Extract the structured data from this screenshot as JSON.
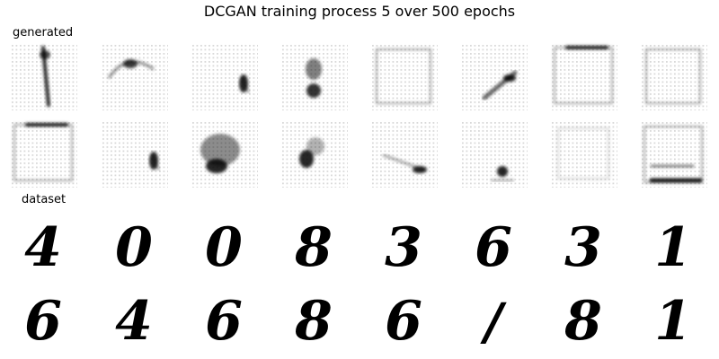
{
  "title": "DCGAN training process 5 over 500 epochs",
  "sections": {
    "generated_label": "generated",
    "dataset_label": "dataset"
  },
  "generated": {
    "rows": 2,
    "cols": 8,
    "samples": [
      [
        {
          "shape": "vertical-stroke"
        },
        {
          "shape": "arc-top"
        },
        {
          "shape": "dot-right"
        },
        {
          "shape": "blob-center"
        },
        {
          "shape": "frame"
        },
        {
          "shape": "diagonal-stroke"
        },
        {
          "shape": "frame-top"
        },
        {
          "shape": "frame"
        }
      ],
      [
        {
          "shape": "frame-top"
        },
        {
          "shape": "dot-right"
        },
        {
          "shape": "blob-large"
        },
        {
          "shape": "blob-left"
        },
        {
          "shape": "stroke-low"
        },
        {
          "shape": "dot-low"
        },
        {
          "shape": "faint"
        },
        {
          "shape": "frame-bottom"
        }
      ]
    ]
  },
  "dataset": {
    "rows": 2,
    "cols": 8,
    "digits": [
      [
        "4",
        "0",
        "0",
        "8",
        "3",
        "6",
        "3",
        "1"
      ],
      [
        "6",
        "4",
        "6",
        "8",
        "6",
        "/",
        "8",
        "1"
      ]
    ]
  },
  "colors": {
    "background": "#ffffff",
    "ink": "#000000",
    "grid_dots": "#d9d9d9"
  }
}
